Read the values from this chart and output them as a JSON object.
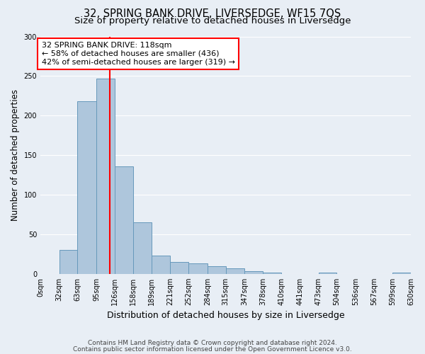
{
  "title": "32, SPRING BANK DRIVE, LIVERSEDGE, WF15 7QS",
  "subtitle": "Size of property relative to detached houses in Liversedge",
  "xlabel": "Distribution of detached houses by size in Liversedge",
  "ylabel": "Number of detached properties",
  "bin_edges": [
    0,
    32,
    63,
    95,
    126,
    158,
    189,
    221,
    252,
    284,
    315,
    347,
    378,
    410,
    441,
    473,
    504,
    536,
    567,
    599,
    630
  ],
  "bin_labels": [
    "0sqm",
    "32sqm",
    "63sqm",
    "95sqm",
    "126sqm",
    "158sqm",
    "189sqm",
    "221sqm",
    "252sqm",
    "284sqm",
    "315sqm",
    "347sqm",
    "378sqm",
    "410sqm",
    "441sqm",
    "473sqm",
    "504sqm",
    "536sqm",
    "567sqm",
    "599sqm",
    "630sqm"
  ],
  "counts": [
    0,
    30,
    218,
    247,
    136,
    65,
    23,
    15,
    13,
    10,
    7,
    3,
    2,
    0,
    0,
    2,
    0,
    0,
    0,
    2
  ],
  "bar_color": "#aec6dc",
  "bar_edgecolor": "#6699bb",
  "vline_x": 118,
  "vline_color": "red",
  "annotation_line1": "32 SPRING BANK DRIVE: 118sqm",
  "annotation_line2": "← 58% of detached houses are smaller (436)",
  "annotation_line3": "42% of semi-detached houses are larger (319) →",
  "annotation_box_color": "white",
  "annotation_box_edgecolor": "red",
  "ylim": [
    0,
    300
  ],
  "yticks": [
    0,
    50,
    100,
    150,
    200,
    250,
    300
  ],
  "background_color": "#e8eef5",
  "footer_line1": "Contains HM Land Registry data © Crown copyright and database right 2024.",
  "footer_line2": "Contains public sector information licensed under the Open Government Licence v3.0.",
  "grid_color": "#ffffff",
  "title_fontsize": 10.5,
  "subtitle_fontsize": 9.5,
  "xlabel_fontsize": 9,
  "ylabel_fontsize": 8.5,
  "tick_fontsize": 7,
  "annotation_fontsize": 8,
  "footer_fontsize": 6.5
}
